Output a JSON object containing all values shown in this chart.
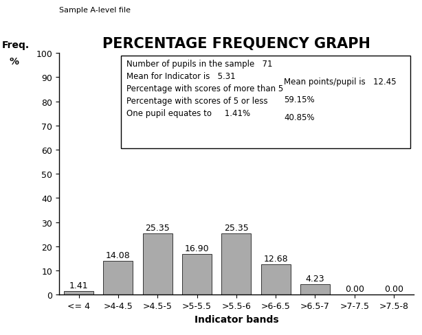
{
  "title": "PERCENTAGE FREQUENCY GRAPH",
  "suptitle": "Sample A-level file",
  "ylabel_line1": "Freq.",
  "ylabel_line2": "%",
  "xlabel": "Indicator bands",
  "categories": [
    "<= 4",
    ">4-4.5",
    ">4.5-5",
    ">5-5.5",
    ">5.5-6",
    ">6-6.5",
    ">6.5-7",
    ">7-7.5",
    ">7.5-8"
  ],
  "values": [
    1.41,
    14.08,
    25.35,
    16.9,
    25.35,
    12.68,
    4.23,
    0.0,
    0.0
  ],
  "bar_color": "#aaaaaa",
  "bar_edgecolor": "#333333",
  "ylim": [
    0,
    100
  ],
  "yticks": [
    0,
    10,
    20,
    30,
    40,
    50,
    60,
    70,
    80,
    90,
    100
  ],
  "value_labels": [
    "1.41",
    "14.08",
    "25.35",
    "16.90",
    "25.35",
    "12.68",
    "4.23",
    "0.00",
    "0.00"
  ],
  "background_color": "#ffffff",
  "title_fontsize": 15,
  "label_fontsize": 9,
  "tick_fontsize": 9,
  "info_fontsize": 8.5,
  "suptitle_fontsize": 8,
  "info_line1": "Number of pupils in the sample   71",
  "info_line2_left": "Mean for Indicator is   5.31",
  "info_line2_right": "Mean points/pupil is   12.45",
  "info_line3_left": "Percentage with scores of more than 5",
  "info_line3_right": "59.15%",
  "info_line4_left": "Percentage with scores of 5 or less",
  "info_line4_right": "40.85%",
  "info_line5": "One pupil equates to     1.41%"
}
